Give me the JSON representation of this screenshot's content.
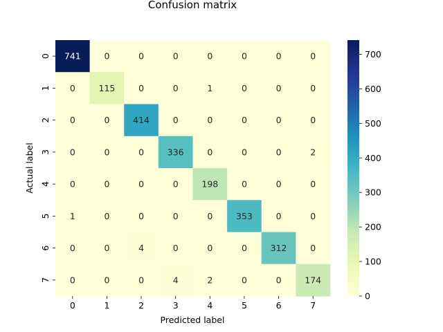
{
  "chart_data": {
    "type": "heatmap",
    "title": "Confusion matrix",
    "xlabel": "Predicted label",
    "ylabel": "Actual label",
    "x_categories": [
      "0",
      "1",
      "2",
      "3",
      "4",
      "5",
      "6",
      "7"
    ],
    "y_categories": [
      "0",
      "1",
      "2",
      "3",
      "4",
      "5",
      "6",
      "7"
    ],
    "matrix": [
      [
        741,
        0,
        0,
        0,
        0,
        0,
        0,
        0
      ],
      [
        0,
        115,
        0,
        0,
        1,
        0,
        0,
        0
      ],
      [
        0,
        0,
        414,
        0,
        0,
        0,
        0,
        0
      ],
      [
        0,
        0,
        0,
        336,
        0,
        0,
        0,
        2
      ],
      [
        0,
        0,
        0,
        0,
        198,
        0,
        0,
        0
      ],
      [
        1,
        0,
        0,
        0,
        0,
        353,
        0,
        0
      ],
      [
        0,
        0,
        4,
        0,
        0,
        0,
        312,
        0
      ],
      [
        0,
        0,
        0,
        4,
        2,
        0,
        0,
        174
      ]
    ],
    "vmin": 0,
    "vmax": 741,
    "colormap": "YlGnBu",
    "colorbar": {
      "ticks": [
        0,
        100,
        200,
        300,
        400,
        500,
        600,
        700
      ]
    }
  }
}
